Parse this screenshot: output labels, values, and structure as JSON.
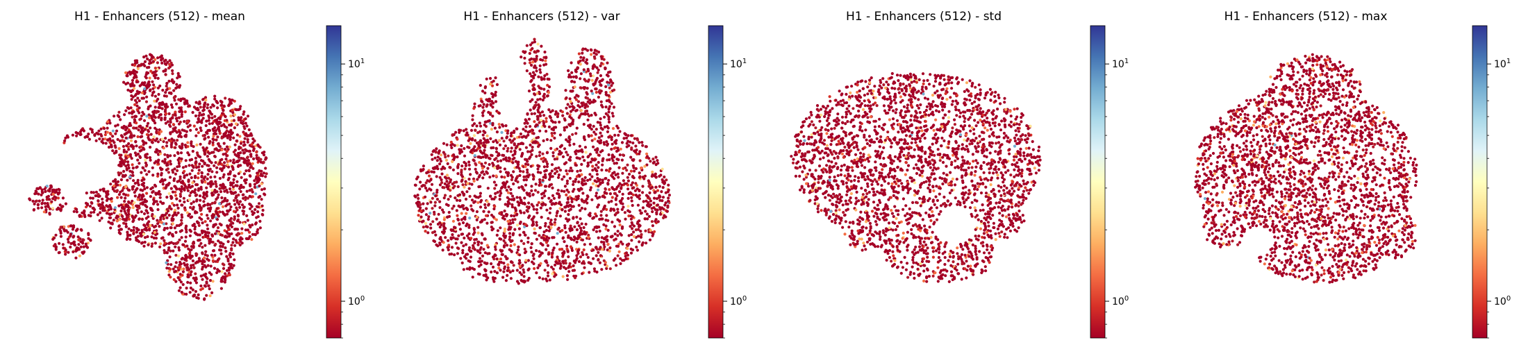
{
  "chart_data": [
    {
      "type": "scatter",
      "title": "H1 - Enhancers (512) - mean",
      "xlabel": "",
      "ylabel": "",
      "axes_visible": false,
      "colorbar": {
        "scale": "log",
        "cmap": "RdYlBu",
        "range": [
          0.7,
          14.5
        ],
        "ticks": [
          {
            "value": 1,
            "base": "10",
            "exp": "0"
          },
          {
            "value": 10,
            "base": "10",
            "exp": "1"
          }
        ]
      },
      "shape": [
        [
          -0.3,
          -0.25,
          0.24,
          0.07
        ],
        [
          0.1,
          0.0,
          0.58,
          0.52
        ],
        [
          0.25,
          -0.55,
          0.22,
          0.3
        ],
        [
          -0.45,
          0.18,
          0.16,
          0.13
        ],
        [
          0.48,
          -0.25,
          0.17,
          0.25
        ],
        [
          0.35,
          0.3,
          0.22,
          0.22
        ],
        [
          -0.05,
          0.62,
          0.18,
          0.18
        ],
        [
          -0.55,
          -0.45,
          0.12,
          0.12
        ],
        [
          -0.7,
          -0.18,
          0.12,
          0.1
        ]
      ],
      "cutout": [
        -0.48,
        0.05,
        0.22,
        0.18
      ]
    },
    {
      "type": "scatter",
      "title": "H1 - Enhancers (512) - var",
      "xlabel": "",
      "ylabel": "",
      "axes_visible": false,
      "colorbar": {
        "scale": "log",
        "cmap": "RdYlBu",
        "range": [
          0.7,
          14.5
        ],
        "ticks": [
          {
            "value": 1,
            "base": "10",
            "exp": "0"
          },
          {
            "value": 10,
            "base": "10",
            "exp": "1"
          }
        ]
      },
      "shape": [
        [
          0.0,
          -0.15,
          0.8,
          0.58
        ],
        [
          0.3,
          0.5,
          0.16,
          0.35
        ],
        [
          -0.05,
          0.6,
          0.1,
          0.3
        ],
        [
          -0.3,
          0.55,
          0.1,
          0.1
        ],
        [
          -0.35,
          0.4,
          0.1,
          0.1
        ],
        [
          -0.2,
          -0.62,
          0.3,
          0.12
        ]
      ],
      "cutout": [
        -0.18,
        0.55,
        0.1,
        0.25
      ]
    },
    {
      "type": "scatter",
      "title": "H1 - Enhancers (512) - std",
      "xlabel": "",
      "ylabel": "",
      "axes_visible": false,
      "colorbar": {
        "scale": "log",
        "cmap": "RdYlBu",
        "range": [
          0.7,
          14.5
        ],
        "ticks": [
          {
            "value": 1,
            "base": "10",
            "exp": "0"
          },
          {
            "value": 10,
            "base": "10",
            "exp": "1"
          }
        ]
      },
      "shape": [
        [
          -0.05,
          0.1,
          0.78,
          0.58
        ],
        [
          0.1,
          -0.55,
          0.35,
          0.18
        ],
        [
          0.45,
          -0.3,
          0.18,
          0.15
        ],
        [
          -0.35,
          -0.4,
          0.15,
          0.12
        ]
      ],
      "cutout": [
        0.2,
        -0.35,
        0.12,
        0.12
      ]
    },
    {
      "type": "scatter",
      "title": "H1 - Enhancers (512) - max",
      "xlabel": "",
      "ylabel": "",
      "axes_visible": false,
      "colorbar": {
        "scale": "log",
        "cmap": "RdYlBu",
        "range": [
          0.7,
          14.5
        ],
        "ticks": [
          {
            "value": 1,
            "base": "10",
            "exp": "0"
          },
          {
            "value": 10,
            "base": "10",
            "exp": "1"
          }
        ]
      },
      "shape": [
        [
          0.0,
          0.0,
          0.7,
          0.58
        ],
        [
          0.05,
          0.55,
          0.3,
          0.25
        ],
        [
          0.1,
          -0.55,
          0.4,
          0.18
        ],
        [
          0.55,
          -0.4,
          0.15,
          0.18
        ],
        [
          -0.5,
          -0.35,
          0.15,
          0.15
        ]
      ],
      "cutout": [
        -0.3,
        -0.45,
        0.1,
        0.1
      ]
    }
  ]
}
